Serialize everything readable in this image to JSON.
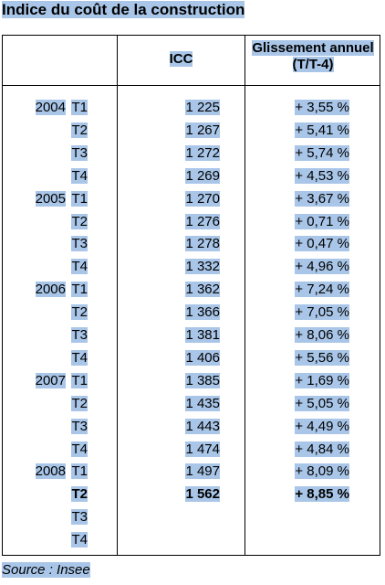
{
  "title": "Indice du coût de la construction",
  "table": {
    "headers": [
      "ICC",
      "Glissement annuel (T/T-4)"
    ],
    "rows": [
      {
        "year": "2004",
        "quarter": "T1",
        "icc": "1 225",
        "change": "+ 3,55 %"
      },
      {
        "quarter": "T2",
        "icc": "1 267",
        "change": "+ 5,41 %"
      },
      {
        "quarter": "T3",
        "icc": "1 272",
        "change": "+ 5,74 %"
      },
      {
        "quarter": "T4",
        "icc": "1 269",
        "change": "+ 4,53 %"
      },
      {
        "year": "2005",
        "quarter": "T1",
        "icc": "1 270",
        "change": "+ 3,67 %"
      },
      {
        "quarter": "T2",
        "icc": "1 276",
        "change": "+ 0,71 %"
      },
      {
        "quarter": "T3",
        "icc": "1 278",
        "change": "+ 0,47 %"
      },
      {
        "quarter": "T4",
        "icc": "1 332",
        "change": "+ 4,96 %"
      },
      {
        "year": "2006",
        "quarter": "T1",
        "icc": "1 362",
        "change": "+ 7,24 %"
      },
      {
        "quarter": "T2",
        "icc": "1 366",
        "change": "+ 7,05 %"
      },
      {
        "quarter": "T3",
        "icc": "1 381",
        "change": "+ 8,06 %"
      },
      {
        "quarter": "T4",
        "icc": "1 406",
        "change": "+ 5,56 %"
      },
      {
        "year": "2007",
        "quarter": "T1",
        "icc": "1 385",
        "change": "+ 1,69 %"
      },
      {
        "quarter": "T2",
        "icc": "1 435",
        "change": "+ 5,05 %"
      },
      {
        "quarter": "T3",
        "icc": "1 443",
        "change": "+ 4,49 %"
      },
      {
        "quarter": "T4",
        "icc": "1 474",
        "change": "+ 4,84 %"
      },
      {
        "year": "2008",
        "quarter": "T1",
        "icc": "1 497",
        "change": "+ 8,09 %"
      },
      {
        "quarter": "T2",
        "icc": "1 562",
        "change": "+ 8,85 %",
        "bold": true
      },
      {
        "quarter": "T3"
      },
      {
        "quarter": "T4"
      }
    ]
  },
  "source": "Source : Insee"
}
